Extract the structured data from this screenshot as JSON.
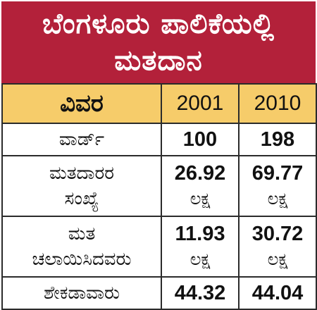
{
  "title": {
    "line1": "ಬೆಂಗಳೂರು ಪಾಲಿಕೆಯಲ್ಲಿ",
    "line2": "ಮತದಾನ"
  },
  "colors": {
    "title_background": "#b3213a",
    "header_background": "#f6cc6a",
    "border": "#2b2b2b"
  },
  "table": {
    "headers": [
      "ವಿವರ",
      "2001",
      "2010"
    ],
    "rows": [
      {
        "label_lines": [
          "ವಾರ್ಡ್"
        ],
        "v2001": "100",
        "u2001": "",
        "v2010": "198",
        "u2010": ""
      },
      {
        "label_lines": [
          "ಮತದಾರರ",
          "ಸಂಖ್ಯೆ"
        ],
        "v2001": "26.92",
        "u2001": "ಲಕ್ಷ",
        "v2010": "69.77",
        "u2010": "ಲಕ್ಷ"
      },
      {
        "label_lines": [
          "ಮತ",
          "ಚಲಾಯಿಸಿದವರು"
        ],
        "v2001": "11.93",
        "u2001": "ಲಕ್ಷ",
        "v2010": "30.72",
        "u2010": "ಲಕ್ಷ"
      },
      {
        "label_lines": [
          "ಶೇಕಡಾವಾರು"
        ],
        "v2001": "44.32",
        "u2001": "",
        "v2010": "44.04",
        "u2010": ""
      }
    ]
  }
}
